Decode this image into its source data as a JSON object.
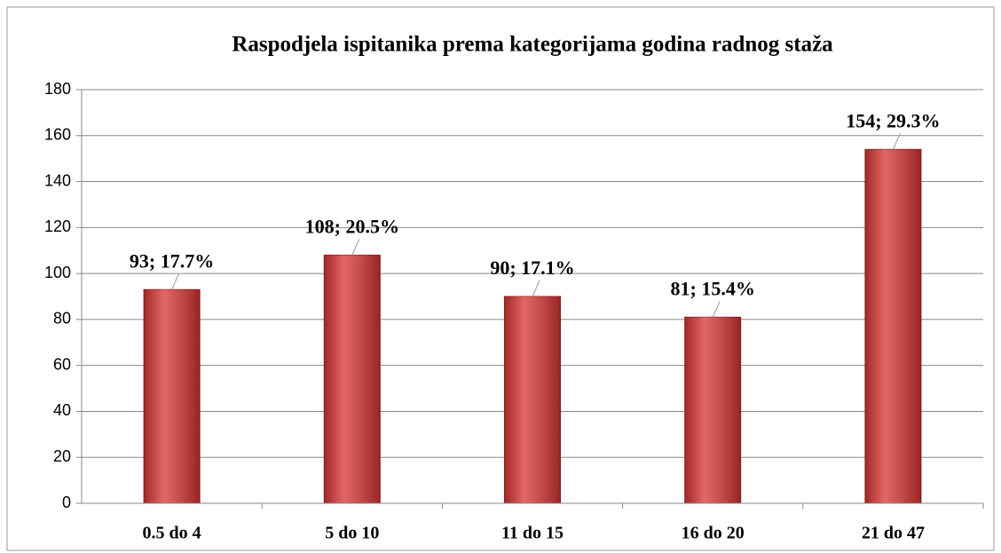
{
  "chart_data": {
    "type": "bar",
    "title": "Raspodjela ispitanika prema kategorijama godina radnog staža",
    "categories": [
      "0.5 do 4",
      "5 do 10",
      "11 do 15",
      "16 do 20",
      "21 do 47"
    ],
    "values": [
      93,
      108,
      90,
      81,
      154
    ],
    "value_labels": [
      "93; 17.7%",
      "108; 20.5%",
      "90; 17.1%",
      "81; 15.4%",
      "154; 29.3%"
    ],
    "color": "#d93433",
    "ylim": [
      0,
      180
    ],
    "yticks": [
      0,
      20,
      40,
      60,
      80,
      100,
      120,
      140,
      160,
      180
    ],
    "grid": true
  }
}
